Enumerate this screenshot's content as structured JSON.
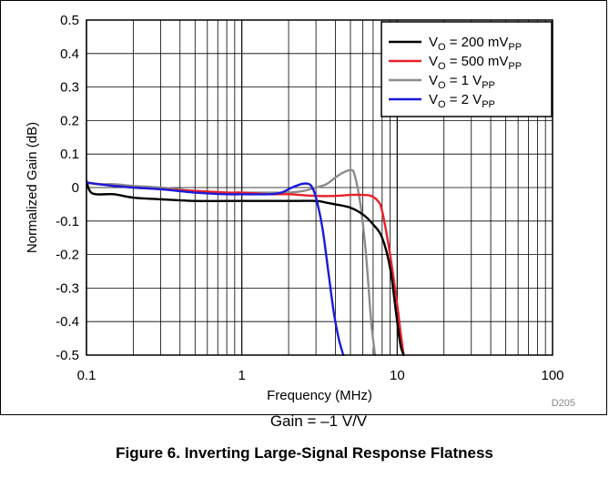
{
  "figure_caption": "Figure 6. Inverting Large-Signal Response Flatness",
  "gain_condition": "Gain = –1 V/V",
  "figure_code": "D205",
  "chart_data": {
    "type": "line",
    "xlabel": "Frequency (MHz)",
    "ylabel": "Normalized Gain (dB)",
    "x_scale": "log",
    "xlim": [
      0.1,
      100
    ],
    "ylim": [
      -0.5,
      0.5
    ],
    "x_ticks": [
      0.1,
      1,
      10,
      100
    ],
    "x_tick_labels": [
      "0.1",
      "1",
      "10",
      "100"
    ],
    "y_ticks": [
      0.5,
      0.4,
      0.3,
      0.2,
      0.1,
      0,
      -0.1,
      -0.2,
      -0.3,
      -0.4,
      -0.5
    ],
    "y_tick_labels": [
      "0.5",
      "0.4",
      "0.3",
      "0.2",
      "0.1",
      "0",
      "-0.1",
      "-0.2",
      "-0.3",
      "-0.4",
      "-0.5"
    ],
    "grid": true,
    "legend_position": "top-right",
    "series": [
      {
        "name_main": "V",
        "name_sub1": "O",
        "name_mid": " = 200 mV",
        "name_sub2": "PP",
        "color": "#000000",
        "x": [
          0.1,
          0.105,
          0.115,
          0.15,
          0.2,
          0.3,
          0.5,
          0.8,
          1.0,
          1.5,
          2.0,
          3.0,
          3.5,
          4.0,
          5.0,
          6.0,
          7.0,
          8.0,
          9.0,
          10.0,
          10.5,
          11.0
        ],
        "y": [
          0.02,
          -0.01,
          -0.02,
          -0.02,
          -0.03,
          -0.035,
          -0.04,
          -0.04,
          -0.04,
          -0.04,
          -0.04,
          -0.04,
          -0.045,
          -0.05,
          -0.06,
          -0.08,
          -0.11,
          -0.15,
          -0.24,
          -0.4,
          -0.47,
          -0.5
        ]
      },
      {
        "name_main": "V",
        "name_sub1": "O",
        "name_mid": " = 500 mV",
        "name_sub2": "PP",
        "color": "#e8202a",
        "x": [
          0.1,
          0.12,
          0.15,
          0.2,
          0.3,
          0.5,
          0.8,
          1.0,
          1.5,
          2.0,
          3.0,
          4.0,
          5.0,
          6.0,
          6.8,
          7.5,
          8.0,
          9.0,
          10.0,
          10.5,
          11.0
        ],
        "y": [
          0.015,
          0.01,
          0.005,
          0.0,
          -0.005,
          -0.01,
          -0.015,
          -0.015,
          -0.02,
          -0.02,
          -0.025,
          -0.025,
          -0.022,
          -0.022,
          -0.025,
          -0.04,
          -0.07,
          -0.2,
          -0.35,
          -0.43,
          -0.5
        ]
      },
      {
        "name_main": "V",
        "name_sub1": "O",
        "name_mid": " = 1 V",
        "name_sub2": "PP",
        "color": "#8c8c8c",
        "x": [
          0.1,
          0.12,
          0.15,
          0.2,
          0.3,
          0.5,
          0.8,
          1.0,
          1.5,
          2.0,
          2.5,
          3.0,
          3.5,
          4.0,
          4.5,
          5.0,
          5.3,
          5.8,
          6.3,
          6.8,
          7.2
        ],
        "y": [
          0.015,
          0.01,
          0.01,
          0.005,
          0.0,
          -0.01,
          -0.015,
          -0.015,
          -0.015,
          -0.015,
          -0.01,
          0.0,
          0.01,
          0.03,
          0.045,
          0.052,
          0.04,
          -0.05,
          -0.2,
          -0.4,
          -0.5
        ]
      },
      {
        "name_main": "V",
        "name_sub1": "O",
        "name_mid": " = 2 V",
        "name_sub2": "PP",
        "color": "#1a1adb",
        "x": [
          0.1,
          0.12,
          0.15,
          0.2,
          0.3,
          0.5,
          0.8,
          1.0,
          1.5,
          1.8,
          2.1,
          2.4,
          2.6,
          2.8,
          3.0,
          3.3,
          3.6,
          3.9,
          4.2,
          4.5
        ],
        "y": [
          0.015,
          0.01,
          0.005,
          0.0,
          -0.005,
          -0.015,
          -0.02,
          -0.02,
          -0.02,
          -0.015,
          0.0,
          0.01,
          0.012,
          0.005,
          -0.03,
          -0.12,
          -0.25,
          -0.37,
          -0.45,
          -0.5
        ]
      }
    ]
  }
}
